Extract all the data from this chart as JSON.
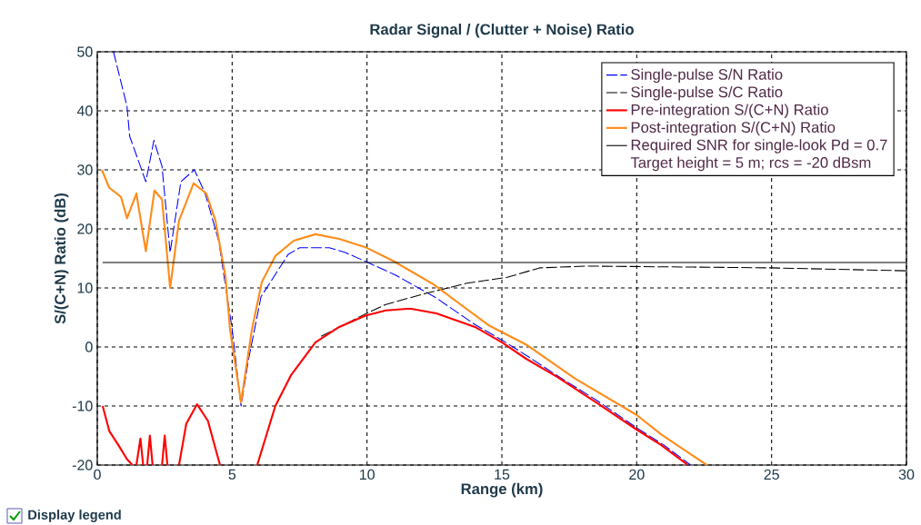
{
  "chart_data": {
    "type": "line",
    "title": "Radar Signal / (Clutter + Noise) Ratio",
    "xlabel": "Range (km)",
    "ylabel": "S/(C+N) Ratio (dB)",
    "xlim": [
      0,
      30
    ],
    "ylim": [
      -20,
      50
    ],
    "xticks": [
      0,
      5,
      10,
      15,
      20,
      25,
      30
    ],
    "yticks": [
      -20,
      -10,
      0,
      10,
      20,
      30,
      40,
      50
    ],
    "grid": true,
    "legend": "top right",
    "series": [
      {
        "name": "Single-pulse S/N Ratio",
        "color": "#0000ff",
        "line_style": "dashed",
        "x": [
          0.6,
          1.1,
          1.2,
          1.8,
          2.1,
          2.4,
          2.7,
          3.1,
          3.6,
          4.0,
          4.5,
          5.0,
          5.33,
          5.6,
          6.07,
          7.08,
          7.5,
          8.6,
          9.2,
          9.94,
          11.05,
          12.57,
          14.0,
          15.03,
          16.0,
          17.0,
          18.5,
          20.0,
          21.0,
          22.0
        ],
        "values": [
          50,
          40.8,
          35.7,
          28,
          35,
          30.6,
          16,
          28,
          30,
          26,
          18,
          3,
          -10,
          -2.3,
          8.5,
          15.7,
          16.8,
          16.8,
          16,
          14.5,
          12.2,
          8.3,
          3.8,
          1.1,
          -1.7,
          -4.7,
          -9,
          -13.7,
          -16.6,
          -20
        ]
      },
      {
        "name": "Single-pulse S/C Ratio",
        "color": "#000000",
        "line_style": "dashed",
        "x": [
          8.3,
          9.94,
          10.7,
          11.56,
          12.2,
          13.7,
          15.2,
          16.4,
          18.2,
          25.0,
          30.0
        ],
        "values": [
          1.8,
          5.6,
          7.2,
          8.3,
          9.1,
          10.8,
          11.8,
          13.4,
          13.7,
          13.4,
          12.9
        ]
      },
      {
        "name": "Pre-integration S/(C+N) Ratio",
        "color": "#ff0000",
        "line_style": "solid",
        "x": [
          0.2,
          0.45,
          0.78,
          1.1,
          1.3,
          1.38,
          1.45,
          1.6,
          1.7,
          1.78,
          1.85,
          1.95,
          2.05,
          2.2,
          2.4,
          2.5,
          2.6,
          2.8,
          3.03,
          3.3,
          3.7,
          4.1,
          4.55,
          5.2,
          5.93,
          6.6,
          7.18,
          8.09,
          8.97,
          9.94,
          10.7,
          11.6,
          12.57,
          14.0,
          15.0,
          15.9,
          17.06,
          18.5,
          20.0,
          20.9,
          21.9
        ],
        "values": [
          -10,
          -14.3,
          -16.6,
          -19,
          -20,
          null,
          -20,
          -15.5,
          -20,
          null,
          -20,
          -15,
          -20,
          null,
          -20,
          -15,
          -20,
          null,
          -20,
          -13,
          -9.7,
          -12.5,
          -20,
          null,
          -20,
          -10,
          -4.8,
          0.8,
          3.4,
          5.3,
          6.2,
          6.5,
          5.7,
          3.4,
          0.8,
          -2,
          -5.1,
          -9.4,
          -14,
          -16.6,
          -20
        ]
      },
      {
        "name": "Post-integration S/(C+N) Ratio",
        "color": "#ff8c1a",
        "line_style": "solid",
        "x": [
          0.17,
          0.44,
          0.88,
          1.1,
          1.45,
          1.8,
          2.12,
          2.4,
          2.7,
          3.03,
          3.57,
          4.04,
          4.38,
          4.75,
          4.92,
          5.33,
          5.73,
          6.1,
          6.6,
          7.28,
          8.09,
          8.97,
          9.94,
          11.0,
          12.47,
          14.5,
          15.94,
          17.73,
          19.99,
          20.9,
          22.6
        ],
        "values": [
          30,
          27,
          25.4,
          21.8,
          26,
          16.2,
          26.5,
          25,
          10,
          21.4,
          27.7,
          26,
          21.4,
          12,
          3,
          -9.4,
          2.9,
          11,
          15.4,
          18,
          19.1,
          18.3,
          16.9,
          14.5,
          10.6,
          3.7,
          0.3,
          -5.4,
          -11.5,
          -14.8,
          -20
        ]
      },
      {
        "name": "Required SNR for single-look Pd = 0.7",
        "color": "#000000",
        "line_style": "solid",
        "x": [
          0.2,
          30
        ],
        "values": [
          14.3,
          14.3
        ]
      }
    ],
    "annotations": [
      "Target height = 5 m; rcs = -20 dBsm",
      "Display legend"
    ]
  }
}
